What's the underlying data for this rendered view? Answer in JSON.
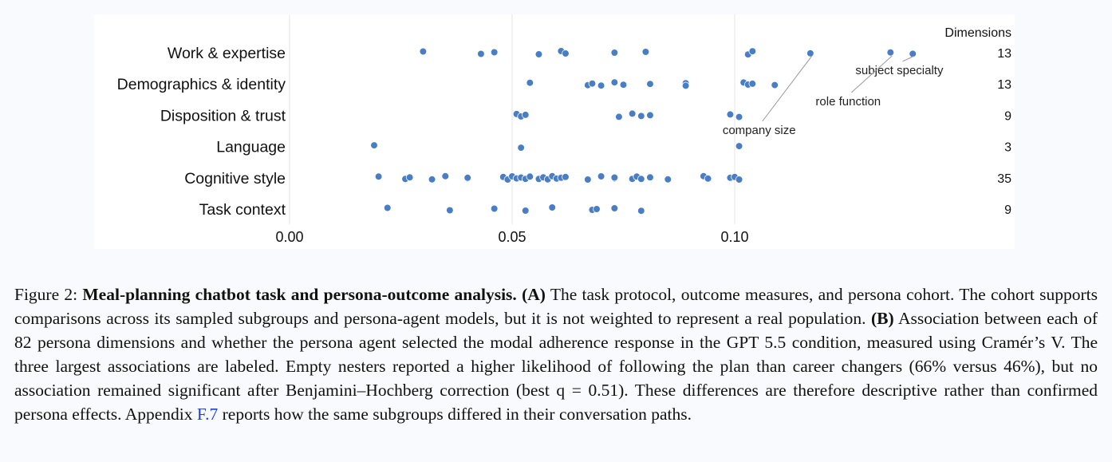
{
  "chart_data": {
    "type": "scatter",
    "title": "",
    "xlabel": "",
    "ylabel": "",
    "xlim": [
      0.0,
      0.1625
    ],
    "x_ticks": [
      0.0,
      0.05,
      0.1
    ],
    "x_tick_labels": [
      "0.00",
      "0.05",
      "0.10"
    ],
    "grid": "vertical",
    "point_color": "#4a7ec4",
    "count_header": "Dimensions",
    "categories": [
      {
        "label": "Work & expertise",
        "count": "13",
        "values": [
          0.03,
          0.043,
          0.046,
          0.056,
          0.061,
          0.062,
          0.073,
          0.08,
          0.103,
          0.104,
          0.117,
          0.135,
          0.14
        ]
      },
      {
        "label": "Demographics & identity",
        "count": "13",
        "values": [
          0.054,
          0.067,
          0.068,
          0.07,
          0.073,
          0.075,
          0.081,
          0.089,
          0.089,
          0.102,
          0.103,
          0.104,
          0.109
        ]
      },
      {
        "label": "Disposition & trust",
        "count": "9",
        "values": [
          0.051,
          0.052,
          0.053,
          0.074,
          0.077,
          0.079,
          0.081,
          0.099,
          0.101
        ]
      },
      {
        "label": "Language",
        "count": "3",
        "values": [
          0.019,
          0.052,
          0.101
        ]
      },
      {
        "label": "Cognitive style",
        "count": "35",
        "values": [
          0.02,
          0.026,
          0.027,
          0.032,
          0.035,
          0.04,
          0.04,
          0.048,
          0.049,
          0.05,
          0.051,
          0.052,
          0.053,
          0.054,
          0.056,
          0.057,
          0.058,
          0.059,
          0.06,
          0.061,
          0.062,
          0.067,
          0.07,
          0.073,
          0.073,
          0.077,
          0.078,
          0.079,
          0.081,
          0.085,
          0.093,
          0.094,
          0.099,
          0.1,
          0.101
        ]
      },
      {
        "label": "Task context",
        "count": "9",
        "values": [
          0.022,
          0.036,
          0.046,
          0.053,
          0.059,
          0.068,
          0.069,
          0.073,
          0.079
        ]
      }
    ],
    "annotations": [
      {
        "text": "subject specialty",
        "category": "Work & expertise",
        "x": 0.14,
        "text_x": 0.137,
        "text_dy": 27
      },
      {
        "text": "role function",
        "category": "Work & expertise",
        "x": 0.135,
        "text_x": 0.1255,
        "text_dy": 66
      },
      {
        "text": "company size",
        "category": "Work & expertise",
        "x": 0.117,
        "text_x": 0.1055,
        "text_dy": 102
      }
    ]
  },
  "caption": {
    "figure_label": "Figure 2: ",
    "title": "Meal-planning chatbot task and persona-outcome analysis.",
    "a_label": "(A)",
    "a_text": " The task protocol, outcome measures, and persona cohort.  The cohort supports comparisons across its sampled subgroups and persona-agent models, but it is not weighted to represent a real population. ",
    "b_label": "(B)",
    "b_text": " Association between each of 82 persona dimensions and whether the persona agent selected the modal adherence response in the GPT 5.5 condition, measured using Cramér’s V. The three largest associations are labeled. Empty nesters reported a higher likelihood of following the plan than career changers (66% versus 46%), but no association remained significant after Benjamini–Hochberg correction (best q = 0.51). These differences are therefore descriptive rather than confirmed persona effects. Appendix ",
    "link_text": "F.7",
    "end_text": " reports how the same subgroups differed in their conversation paths."
  }
}
